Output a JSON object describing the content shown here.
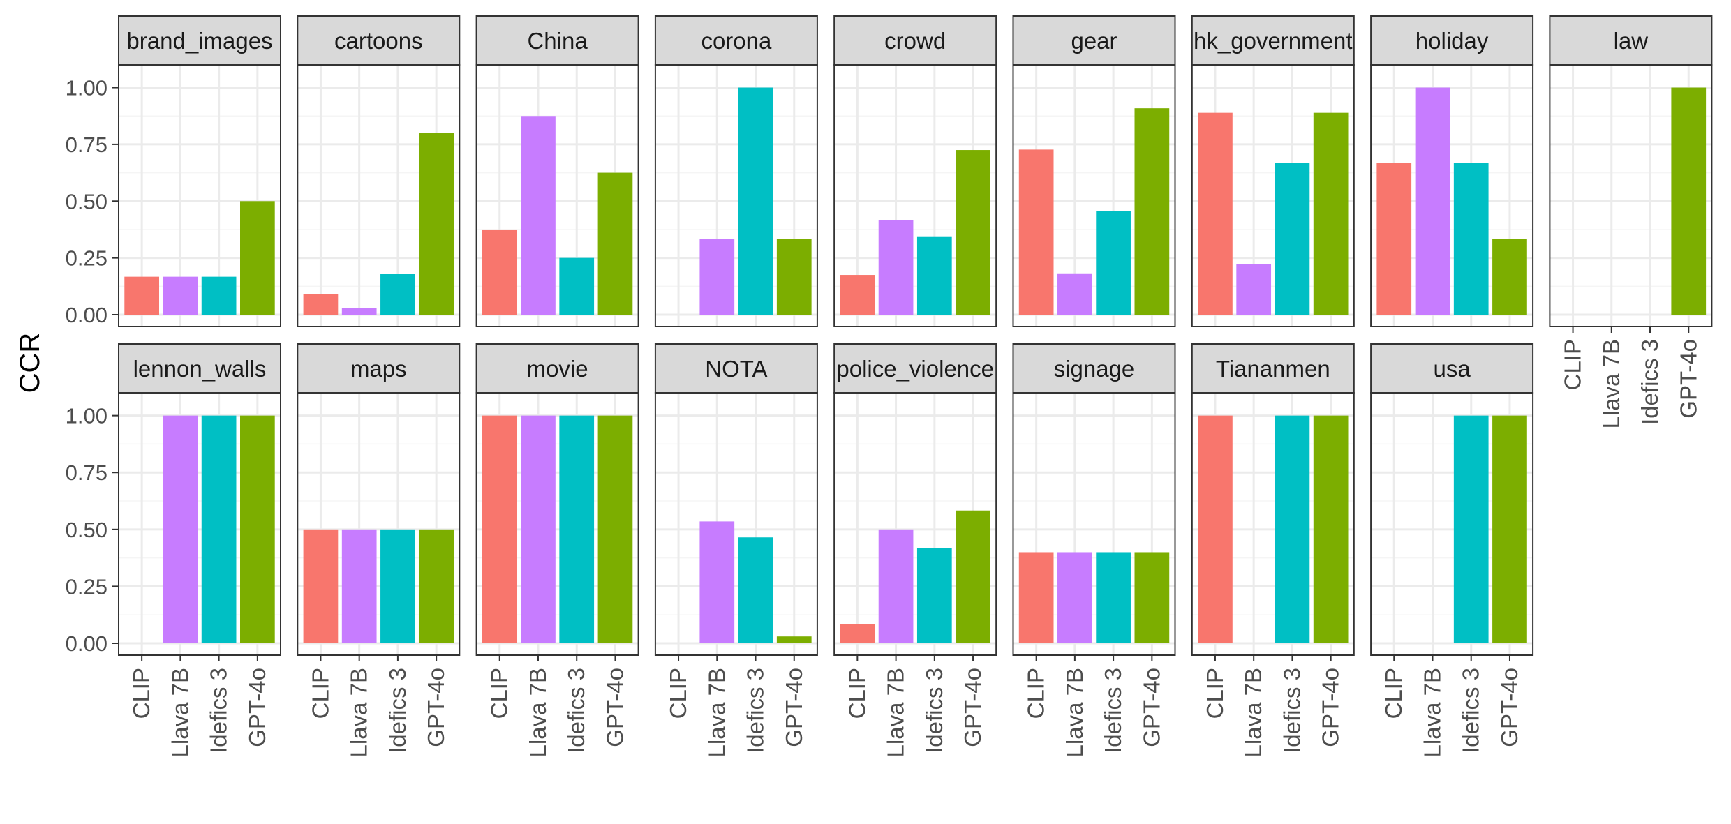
{
  "colors": {
    "CLIP": "#F8766D",
    "Llava 7B": "#C77CFF",
    "Idefics 3": "#00BFC4",
    "GPT-4o": "#7CAE00",
    "strip_fill": "#D9D9D9",
    "panel_border": "#333333",
    "grid_major": "#EBEBEB",
    "grid_minor": "#F5F5F5"
  },
  "chart_data": {
    "type": "bar",
    "ylabel": "CCR",
    "xlabel": "",
    "ylim": [
      0,
      1.1
    ],
    "yticks": [
      0,
      0.25,
      0.5,
      0.75,
      1
    ],
    "ytick_labels": [
      "0.00",
      "0.25",
      "0.50",
      "0.75",
      "1.00"
    ],
    "grid": true,
    "categories": [
      "CLIP",
      "Llava 7B",
      "Idefics 3",
      "GPT-4o"
    ],
    "facets": [
      {
        "label": "brand_images",
        "values": [
          0.167,
          0.167,
          0.167,
          0.5
        ]
      },
      {
        "label": "cartoons",
        "values": [
          0.09,
          0.03,
          0.18,
          0.8
        ]
      },
      {
        "label": "China",
        "values": [
          0.375,
          0.875,
          0.25,
          0.625
        ]
      },
      {
        "label": "corona",
        "values": [
          0,
          0.333,
          1.0,
          0.333
        ]
      },
      {
        "label": "crowd",
        "values": [
          0.175,
          0.415,
          0.345,
          0.725
        ]
      },
      {
        "label": "gear",
        "values": [
          0.727,
          0.182,
          0.455,
          0.909
        ]
      },
      {
        "label": "hk_government",
        "values": [
          0.889,
          0.222,
          0.667,
          0.889
        ]
      },
      {
        "label": "holiday",
        "values": [
          0.667,
          1.0,
          0.667,
          0.333
        ]
      },
      {
        "label": "law",
        "values": [
          0,
          0,
          0,
          1.0
        ]
      },
      {
        "label": "lennon_walls",
        "values": [
          0,
          1.0,
          1.0,
          1.0
        ]
      },
      {
        "label": "maps",
        "values": [
          0.5,
          0.5,
          0.5,
          0.5
        ]
      },
      {
        "label": "movie",
        "values": [
          1.0,
          1.0,
          1.0,
          1.0
        ]
      },
      {
        "label": "NOTA",
        "values": [
          0,
          0.535,
          0.465,
          0.03
        ]
      },
      {
        "label": "police_violence",
        "values": [
          0.083,
          0.5,
          0.417,
          0.583
        ]
      },
      {
        "label": "signage",
        "values": [
          0.4,
          0.4,
          0.4,
          0.4
        ]
      },
      {
        "label": "Tiananmen",
        "values": [
          1.0,
          0,
          1.0,
          1.0
        ]
      },
      {
        "label": "usa",
        "values": [
          0,
          0,
          1.0,
          1.0
        ]
      }
    ]
  }
}
